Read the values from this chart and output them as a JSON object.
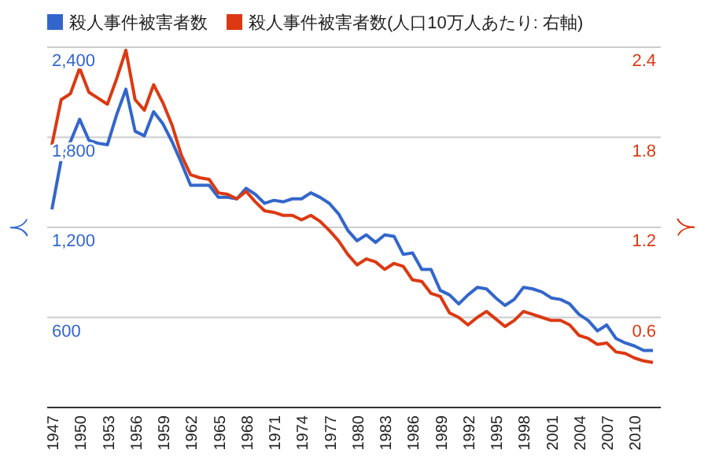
{
  "chart_data": {
    "type": "line",
    "ylabel": "人",
    "y2label": "人",
    "categories": [
      "1947",
      null,
      null,
      "1950",
      null,
      null,
      "1953",
      null,
      null,
      "1956",
      null,
      null,
      "1959",
      null,
      null,
      "1962",
      null,
      null,
      "1965",
      null,
      null,
      "1968",
      null,
      null,
      "1971",
      null,
      null,
      "1974",
      null,
      null,
      "1977",
      null,
      null,
      "1980",
      null,
      null,
      "1983",
      null,
      null,
      "1986",
      null,
      null,
      "1989",
      null,
      null,
      "1992",
      null,
      null,
      "1995",
      null,
      null,
      "1998",
      null,
      null,
      "2001",
      null,
      null,
      "2004",
      null,
      null,
      "2007",
      null,
      null,
      "2010",
      null,
      null
    ],
    "series": [
      {
        "name": "殺人事件被害者数",
        "color": "#3366cc",
        "values": [
          1320,
          1650,
          1770,
          1920,
          1780,
          1760,
          1750,
          1950,
          2120,
          1840,
          1810,
          1970,
          1890,
          1770,
          1630,
          1480,
          1480,
          1480,
          1400,
          1400,
          1390,
          1460,
          1420,
          1360,
          1380,
          1370,
          1390,
          1390,
          1430,
          1400,
          1360,
          1290,
          1180,
          1110,
          1150,
          1100,
          1150,
          1140,
          1020,
          1030,
          920,
          920,
          780,
          750,
          690,
          750,
          800,
          790,
          730,
          680,
          720,
          800,
          790,
          770,
          730,
          720,
          690,
          620,
          580,
          510,
          550,
          460,
          430,
          410,
          380,
          380
        ]
      },
      {
        "name": "殺人事件被害者数(人口10万人あたり: 右軸)",
        "color": "#dc3912",
        "axis": "y2",
        "values": [
          1.75,
          2.05,
          2.09,
          2.26,
          2.1,
          2.06,
          2.02,
          2.19,
          2.38,
          2.05,
          1.98,
          2.15,
          2.03,
          1.88,
          1.68,
          1.55,
          1.53,
          1.52,
          1.43,
          1.42,
          1.39,
          1.44,
          1.37,
          1.31,
          1.3,
          1.28,
          1.28,
          1.25,
          1.28,
          1.24,
          1.18,
          1.11,
          1.02,
          0.95,
          0.99,
          0.97,
          0.92,
          0.96,
          0.94,
          0.85,
          0.84,
          0.76,
          0.74,
          0.63,
          0.6,
          0.55,
          0.6,
          0.64,
          0.59,
          0.54,
          0.58,
          0.64,
          0.62,
          0.6,
          0.58,
          0.58,
          0.55,
          0.48,
          0.46,
          0.42,
          0.43,
          0.37,
          0.36,
          0.33,
          0.31,
          0.3
        ]
      }
    ],
    "ylim": [
      0,
      2400
    ],
    "yticks": [
      {
        "value": 600,
        "label": "600"
      },
      {
        "value": 1200,
        "label": "1,200"
      },
      {
        "value": 1800,
        "label": "1,800"
      },
      {
        "value": 2400,
        "label": "2,400"
      }
    ],
    "y2lim": [
      0,
      2.4
    ],
    "y2ticks": [
      0.6,
      1.2,
      1.8,
      2.4
    ],
    "grid": "y",
    "legend": "top left",
    "marker": "none",
    "line_style": "solid"
  }
}
